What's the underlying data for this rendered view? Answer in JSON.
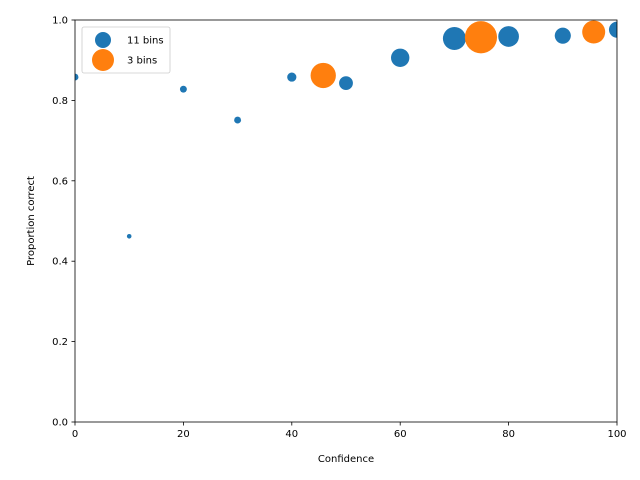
{
  "chart_data": {
    "type": "scatter",
    "title": "",
    "xlabel": "Confidence",
    "ylabel": "Proportion correct",
    "xlim": [
      0,
      100
    ],
    "ylim": [
      0,
      1.0
    ],
    "xticks": [
      "0",
      "20",
      "40",
      "60",
      "80",
      "100"
    ],
    "yticks": [
      "0.0",
      "0.2",
      "0.4",
      "0.6",
      "0.8",
      "1.0"
    ],
    "grid": false,
    "legend_position": "upper-left",
    "series": [
      {
        "name": "11 bins",
        "color": "#1f77b4",
        "points": [
          {
            "x": 0,
            "y": 0.858,
            "size": 3
          },
          {
            "x": 10,
            "y": 0.462,
            "size": 2
          },
          {
            "x": 20,
            "y": 0.828,
            "size": 3
          },
          {
            "x": 30,
            "y": 0.751,
            "size": 3
          },
          {
            "x": 40,
            "y": 0.858,
            "size": 4
          },
          {
            "x": 50,
            "y": 0.843,
            "size": 6
          },
          {
            "x": 60,
            "y": 0.906,
            "size": 8
          },
          {
            "x": 70,
            "y": 0.954,
            "size": 10
          },
          {
            "x": 80,
            "y": 0.959,
            "size": 9
          },
          {
            "x": 90,
            "y": 0.961,
            "size": 7
          },
          {
            "x": 100,
            "y": 0.976,
            "size": 7
          }
        ]
      },
      {
        "name": "3 bins",
        "color": "#ff7f0e",
        "points": [
          {
            "x": 45.8,
            "y": 0.862,
            "size": 11
          },
          {
            "x": 74.9,
            "y": 0.957,
            "size": 14
          },
          {
            "x": 95.7,
            "y": 0.97,
            "size": 10
          }
        ]
      }
    ]
  }
}
